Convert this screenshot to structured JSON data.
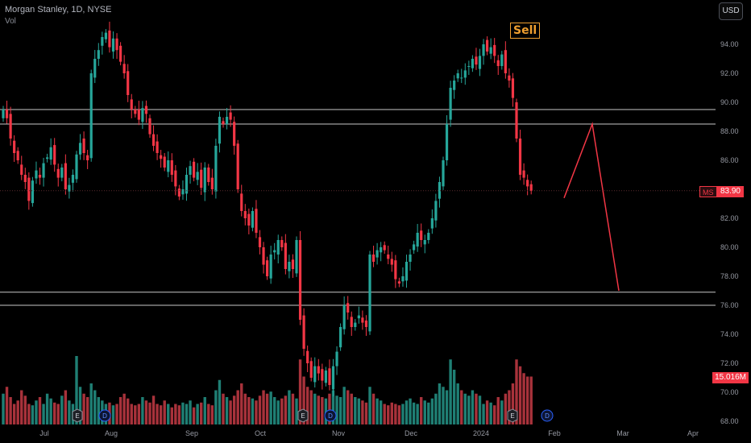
{
  "header": {
    "title": "Morgan Stanley, 1D, NYSE",
    "volume_label": "Vol",
    "currency_button": "USD",
    "signal_badge": "Sell"
  },
  "price_tags": {
    "symbol": "MS",
    "last_price": "83.90",
    "volume": "15.016M"
  },
  "colors": {
    "up": "#26a69a",
    "down": "#f23645",
    "volume_up": "#1f7f74",
    "volume_down": "#a8323b",
    "level_line": "#c8c8c8",
    "projection": "#f23645",
    "badge": "#f0a030",
    "earnings": "#8a8d96",
    "dividend": "#2962ff"
  },
  "chart_data": {
    "type": "candlestick",
    "ylim": [
      68,
      96
    ],
    "y_ticks": [
      "94.00",
      "92.00",
      "90.00",
      "88.00",
      "86.00",
      "84.00",
      "82.00",
      "80.00",
      "78.00",
      "76.00",
      "74.00",
      "72.00",
      "70.00",
      "68.00"
    ],
    "x_ticks": [
      "Jul",
      "Aug",
      "Sep",
      "Oct",
      "Nov",
      "Dec",
      "2024",
      "Feb",
      "Mar",
      "Apr"
    ],
    "last_price": 83.9,
    "horizontal_levels": [
      89.5,
      88.5,
      76.9,
      76.0
    ],
    "projection_path": [
      [
        83.4,
        "2024-01-21"
      ],
      [
        88.5,
        "2024-02-09"
      ],
      [
        77.0,
        "2024-02-27"
      ]
    ],
    "events": [
      {
        "label": "E",
        "type": "earnings"
      },
      {
        "label": "D",
        "type": "dividend"
      },
      {
        "label": "E",
        "type": "earnings"
      },
      {
        "label": "D",
        "type": "dividend"
      },
      {
        "label": "E",
        "type": "earnings"
      },
      {
        "label": "D",
        "type": "dividend"
      }
    ],
    "close_series": [
      89.5,
      88.9,
      87.5,
      86.5,
      86.0,
      85.0,
      84.5,
      83.2,
      84.6,
      85.3,
      84.8,
      85.8,
      86.2,
      86.9,
      85.7,
      84.8,
      85.5,
      84.0,
      84.3,
      85.0,
      86.4,
      87.2,
      86.5,
      86.0,
      92.0,
      93.0,
      93.6,
      94.5,
      94.8,
      93.8,
      94.4,
      93.6,
      92.8,
      92.0,
      90.5,
      89.5,
      89.2,
      88.8,
      89.6,
      89.2,
      87.8,
      87.0,
      86.5,
      86.1,
      85.5,
      86.0,
      85.0,
      84.2,
      83.5,
      84.0,
      85.0,
      85.6,
      84.8,
      85.2,
      84.1,
      85.5,
      84.5,
      84.0,
      87.0,
      89.0,
      88.5,
      89.0,
      88.8,
      87.0,
      84.0,
      82.5,
      82.0,
      81.5,
      82.5,
      81.0,
      80.0,
      78.8,
      78.0,
      79.5,
      79.8,
      80.5,
      80.0,
      78.5,
      79.0,
      78.5,
      80.5,
      75.0,
      73.0,
      72.0,
      71.0,
      71.8,
      71.3,
      70.8,
      71.5,
      70.5,
      71.8,
      72.8,
      74.5,
      76.0,
      75.5,
      74.5,
      74.8,
      75.3,
      74.8,
      74.5,
      79.5,
      79.0,
      79.8,
      80.0,
      79.8,
      79.2,
      78.8,
      77.8,
      77.5,
      78.0,
      79.0,
      79.5,
      80.2,
      81.0,
      80.5,
      80.5,
      81.0,
      82.0,
      83.2,
      84.5,
      86.0,
      88.5,
      91.0,
      91.5,
      92.0,
      91.7,
      92.2,
      92.5,
      93.0,
      92.6,
      93.2,
      94.0,
      93.5,
      93.8,
      93.2,
      92.5,
      93.3,
      92.0,
      91.5,
      90.3,
      87.5,
      85.0,
      84.8,
      84.2,
      83.9
    ],
    "volume_relative": [
      0.45,
      0.55,
      0.4,
      0.3,
      0.35,
      0.5,
      0.42,
      0.3,
      0.28,
      0.35,
      0.4,
      0.3,
      0.45,
      0.38,
      0.32,
      0.3,
      0.42,
      0.5,
      0.35,
      0.3,
      1.0,
      0.55,
      0.45,
      0.4,
      0.6,
      0.5,
      0.4,
      0.35,
      0.3,
      0.32,
      0.28,
      0.3,
      0.4,
      0.45,
      0.38,
      0.3,
      0.28,
      0.3,
      0.4,
      0.35,
      0.32,
      0.42,
      0.3,
      0.28,
      0.35,
      0.3,
      0.25,
      0.3,
      0.28,
      0.32,
      0.3,
      0.35,
      0.25,
      0.3,
      0.32,
      0.4,
      0.3,
      0.28,
      0.5,
      0.65,
      0.45,
      0.4,
      0.35,
      0.42,
      0.5,
      0.6,
      0.45,
      0.4,
      0.38,
      0.35,
      0.42,
      0.5,
      0.45,
      0.48,
      0.4,
      0.35,
      0.38,
      0.42,
      0.5,
      0.45,
      0.38,
      0.95,
      0.7,
      0.55,
      0.5,
      0.45,
      0.42,
      0.4,
      0.38,
      0.45,
      0.5,
      0.42,
      0.4,
      0.55,
      0.5,
      0.45,
      0.4,
      0.38,
      0.35,
      0.32,
      0.55,
      0.45,
      0.38,
      0.35,
      0.3,
      0.28,
      0.32,
      0.3,
      0.28,
      0.3,
      0.35,
      0.38,
      0.32,
      0.3,
      0.4,
      0.35,
      0.32,
      0.38,
      0.45,
      0.6,
      0.55,
      0.5,
      0.95,
      0.8,
      0.6,
      0.5,
      0.45,
      0.42,
      0.5,
      0.45,
      0.42,
      0.3,
      0.35,
      0.32,
      0.28,
      0.4,
      0.35,
      0.45,
      0.5,
      0.6,
      0.95,
      0.85,
      0.75,
      0.7,
      0.7
    ]
  }
}
